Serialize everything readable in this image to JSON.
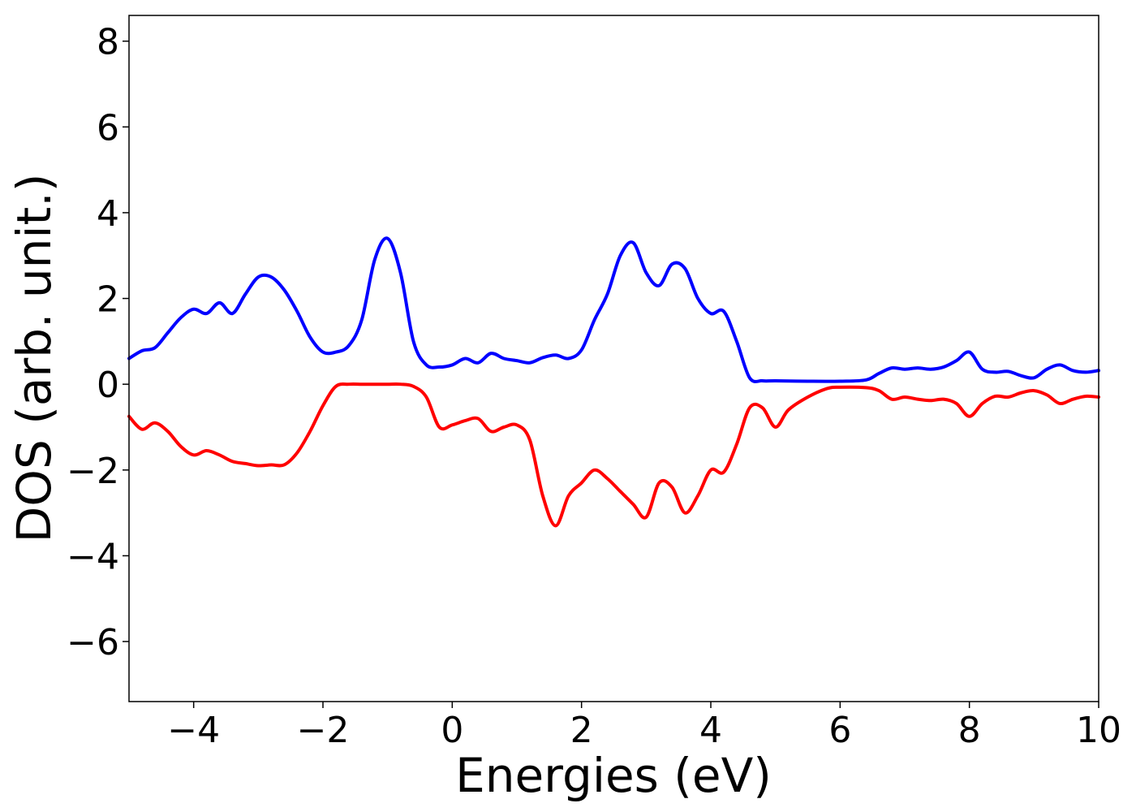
{
  "chart_data": {
    "type": "line",
    "title": "",
    "xlabel": "Energies (eV)",
    "ylabel": "DOS (arb. unit.)",
    "xlim": [
      -5,
      10
    ],
    "ylim": [
      -7.4,
      8.6
    ],
    "xticks": [
      -4,
      -2,
      0,
      2,
      4,
      6,
      8,
      10
    ],
    "xtick_labels": [
      "−4",
      "−2",
      "0",
      "2",
      "4",
      "6",
      "8",
      "10"
    ],
    "yticks": [
      -6,
      -4,
      -2,
      0,
      2,
      4,
      6,
      8
    ],
    "ytick_labels": [
      "−6",
      "−4",
      "−2",
      "0",
      "2",
      "4",
      "6",
      "8"
    ],
    "grid": false,
    "legend": "none",
    "series": [
      {
        "color": "#0000ff",
        "x": [
          -5.0,
          -4.8,
          -4.6,
          -4.4,
          -4.2,
          -4.0,
          -3.8,
          -3.6,
          -3.4,
          -3.2,
          -3.0,
          -2.8,
          -2.6,
          -2.4,
          -2.2,
          -2.0,
          -1.8,
          -1.6,
          -1.4,
          -1.2,
          -1.0,
          -0.8,
          -0.6,
          -0.4,
          -0.2,
          0.0,
          0.2,
          0.4,
          0.6,
          0.8,
          1.0,
          1.2,
          1.4,
          1.6,
          1.8,
          2.0,
          2.2,
          2.4,
          2.6,
          2.8,
          3.0,
          3.2,
          3.4,
          3.6,
          3.8,
          4.0,
          4.2,
          4.4,
          4.6,
          4.8,
          5.0,
          5.5,
          6.0,
          6.4,
          6.6,
          6.8,
          7.0,
          7.2,
          7.4,
          7.6,
          7.8,
          8.0,
          8.2,
          8.4,
          8.6,
          8.8,
          9.0,
          9.2,
          9.4,
          9.6,
          9.8,
          10.0
        ],
        "y": [
          0.6,
          0.78,
          0.85,
          1.2,
          1.55,
          1.75,
          1.65,
          1.9,
          1.65,
          2.1,
          2.5,
          2.5,
          2.2,
          1.7,
          1.1,
          0.75,
          0.75,
          0.9,
          1.5,
          2.9,
          3.4,
          2.6,
          1.0,
          0.45,
          0.4,
          0.45,
          0.6,
          0.5,
          0.72,
          0.6,
          0.55,
          0.5,
          0.62,
          0.68,
          0.6,
          0.8,
          1.5,
          2.1,
          3.0,
          3.3,
          2.6,
          2.3,
          2.8,
          2.7,
          2.0,
          1.65,
          1.7,
          1.0,
          0.15,
          0.08,
          0.08,
          0.07,
          0.07,
          0.1,
          0.25,
          0.38,
          0.35,
          0.38,
          0.35,
          0.4,
          0.55,
          0.75,
          0.35,
          0.28,
          0.3,
          0.2,
          0.15,
          0.35,
          0.45,
          0.32,
          0.28,
          0.32
        ]
      },
      {
        "color": "#ff0000",
        "x": [
          -5.0,
          -4.8,
          -4.6,
          -4.4,
          -4.2,
          -4.0,
          -3.8,
          -3.6,
          -3.4,
          -3.2,
          -3.0,
          -2.8,
          -2.6,
          -2.4,
          -2.2,
          -2.0,
          -1.8,
          -1.6,
          -1.4,
          -1.2,
          -1.0,
          -0.8,
          -0.6,
          -0.4,
          -0.2,
          0.0,
          0.2,
          0.4,
          0.6,
          0.8,
          1.0,
          1.2,
          1.4,
          1.6,
          1.8,
          2.0,
          2.2,
          2.4,
          2.6,
          2.8,
          3.0,
          3.2,
          3.4,
          3.6,
          3.8,
          4.0,
          4.2,
          4.4,
          4.6,
          4.8,
          5.0,
          5.2,
          5.5,
          5.8,
          6.0,
          6.4,
          6.6,
          6.8,
          7.0,
          7.2,
          7.4,
          7.6,
          7.8,
          8.0,
          8.2,
          8.4,
          8.6,
          8.8,
          9.0,
          9.2,
          9.4,
          9.6,
          9.8,
          10.0
        ],
        "y": [
          -0.75,
          -1.05,
          -0.9,
          -1.1,
          -1.45,
          -1.65,
          -1.55,
          -1.65,
          -1.8,
          -1.85,
          -1.9,
          -1.88,
          -1.88,
          -1.6,
          -1.1,
          -0.5,
          -0.05,
          0.0,
          0.0,
          0.0,
          0.0,
          0.0,
          -0.05,
          -0.3,
          -1.0,
          -0.95,
          -0.85,
          -0.8,
          -1.1,
          -1.0,
          -0.95,
          -1.3,
          -2.6,
          -3.3,
          -2.6,
          -2.3,
          -2.0,
          -2.2,
          -2.5,
          -2.8,
          -3.1,
          -2.3,
          -2.4,
          -3.0,
          -2.6,
          -2.0,
          -2.05,
          -1.4,
          -0.55,
          -0.55,
          -1.0,
          -0.6,
          -0.3,
          -0.1,
          -0.07,
          -0.08,
          -0.15,
          -0.35,
          -0.3,
          -0.35,
          -0.38,
          -0.35,
          -0.45,
          -0.75,
          -0.45,
          -0.28,
          -0.3,
          -0.2,
          -0.15,
          -0.25,
          -0.45,
          -0.35,
          -0.28,
          -0.3
        ]
      }
    ]
  }
}
